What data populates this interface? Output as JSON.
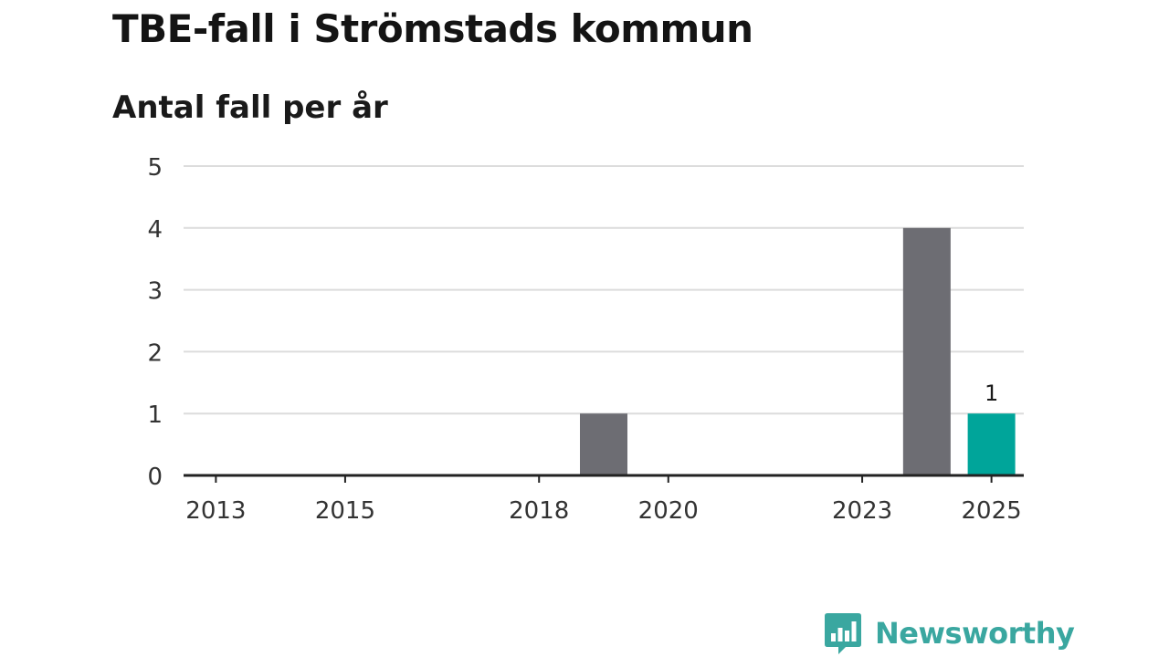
{
  "header": {
    "title": "TBE-fall i Strömstads kommun",
    "subtitle": "Antal fall per år"
  },
  "chart_data": {
    "type": "bar",
    "categories": [
      "2013",
      "2014",
      "2015",
      "2016",
      "2017",
      "2018",
      "2019",
      "2020",
      "2021",
      "2022",
      "2023",
      "2024",
      "2025"
    ],
    "values": [
      0,
      0,
      0,
      0,
      0,
      0,
      1,
      0,
      0,
      0,
      0,
      4,
      1
    ],
    "x_tick_labels": [
      "2013",
      "2015",
      "2018",
      "2020",
      "2023",
      "2025"
    ],
    "y_ticks": [
      0,
      1,
      2,
      3,
      4,
      5
    ],
    "ylim": [
      0,
      5
    ],
    "grid": true,
    "highlight_category": "2025",
    "data_labels": [
      {
        "category": "2025",
        "text": "1"
      }
    ],
    "colors": {
      "bar": "#6d6d73",
      "highlight": "#00a59a",
      "grid": "#dcdcdc",
      "axis": "#222222"
    }
  },
  "brand": {
    "name": "Newsworthy",
    "icon": "newsworthy-logo-icon",
    "color": "#3aa7a0"
  }
}
